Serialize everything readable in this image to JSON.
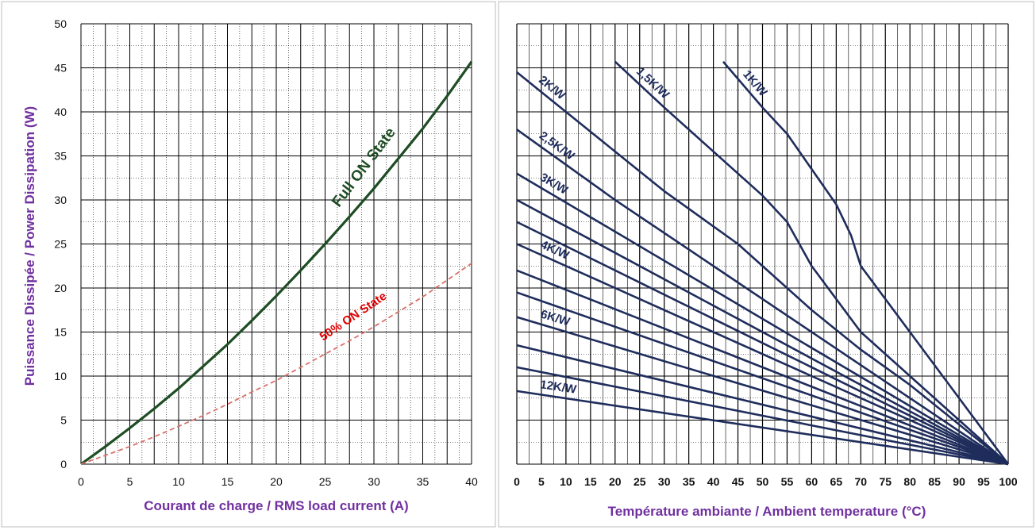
{
  "chart_data": [
    {
      "type": "line",
      "title": "",
      "xlabel": "Courant de charge / RMS load current (A)",
      "ylabel": "Puissance Dissipée / Power Dissipation (W)",
      "xlim": [
        0,
        40
      ],
      "ylim": [
        0,
        50
      ],
      "xticks": [
        "0",
        "5",
        "10",
        "15",
        "20",
        "25",
        "30",
        "35",
        "40"
      ],
      "yticks": [
        "0",
        "5",
        "10",
        "15",
        "20",
        "25",
        "30",
        "35",
        "40",
        "45",
        "50"
      ],
      "grid": true,
      "colors": {
        "full": "#1e4d24",
        "half": "#d9706a",
        "axis_label": "#7030a0"
      },
      "series": [
        {
          "name": "Full ON State",
          "style": "solid",
          "x": [
            0,
            2.5,
            5,
            7.5,
            10,
            12.5,
            15,
            17.5,
            20,
            22.5,
            25,
            27.5,
            30,
            32.5,
            35,
            37.5,
            40
          ],
          "y": [
            0,
            2.0,
            4.1,
            6.3,
            8.6,
            11.1,
            13.6,
            16.3,
            19.1,
            22.0,
            25.0,
            28.1,
            31.3,
            34.7,
            38.1,
            41.8,
            45.7
          ]
        },
        {
          "name": "50% ON State",
          "style": "dashed",
          "x": [
            0,
            2.5,
            5,
            7.5,
            10,
            12.5,
            15,
            17.5,
            20,
            22.5,
            25,
            27.5,
            30,
            32.5,
            35,
            37.5,
            40
          ],
          "y": [
            0,
            1.0,
            2.0,
            3.1,
            4.3,
            5.5,
            6.8,
            8.2,
            9.5,
            11.0,
            12.5,
            14.0,
            15.6,
            17.3,
            19.0,
            20.9,
            22.8
          ]
        }
      ]
    },
    {
      "type": "line",
      "title": "",
      "xlabel": "Température ambiante / Ambient temperature (°C)",
      "ylabel": "",
      "xlim": [
        0,
        100
      ],
      "ylim": [
        0,
        50
      ],
      "xticks": [
        "0",
        "5",
        "10",
        "15",
        "20",
        "25",
        "30",
        "35",
        "40",
        "45",
        "50",
        "55",
        "60",
        "65",
        "70",
        "75",
        "80",
        "85",
        "90",
        "95",
        "100"
      ],
      "grid": true,
      "colors": {
        "lines": "#1f2d5c",
        "axis_label": "#7030a0"
      },
      "series": [
        {
          "name": "1K/W",
          "x": [
            42,
            50,
            55,
            60,
            65,
            68,
            70,
            80,
            90,
            100
          ],
          "y": [
            45.7,
            40.5,
            37.5,
            33.5,
            29.5,
            26,
            22.5,
            15,
            7.5,
            0
          ]
        },
        {
          "name": "1,5K/W",
          "x": [
            20,
            30,
            40,
            50,
            55,
            60,
            70,
            80,
            90,
            100
          ],
          "y": [
            45.7,
            40.5,
            35.5,
            30.5,
            27.5,
            22.5,
            15,
            10,
            5,
            0
          ]
        },
        {
          "name": "2K/W",
          "x": [
            0,
            10,
            20,
            30,
            40,
            45,
            50,
            60,
            70,
            80,
            90,
            100
          ],
          "y": [
            44.5,
            40,
            35.5,
            31,
            27,
            25,
            22.5,
            17.5,
            13,
            9,
            4.5,
            0
          ]
        },
        {
          "name": "2,5K/W",
          "x": [
            0,
            20,
            40,
            100
          ],
          "y": [
            38,
            30,
            22.5,
            0
          ]
        },
        {
          "name": "3K/W",
          "x": [
            0,
            100
          ],
          "y": [
            33,
            0
          ]
        },
        {
          "name": "",
          "x": [
            0,
            100
          ],
          "y": [
            30,
            0
          ]
        },
        {
          "name": "",
          "x": [
            0,
            100
          ],
          "y": [
            27.5,
            0
          ]
        },
        {
          "name": "4K/W",
          "x": [
            0,
            100
          ],
          "y": [
            25,
            0
          ]
        },
        {
          "name": "",
          "x": [
            0,
            100
          ],
          "y": [
            22,
            0
          ]
        },
        {
          "name": "",
          "x": [
            0,
            100
          ],
          "y": [
            19.5,
            0
          ]
        },
        {
          "name": "6K/W",
          "x": [
            0,
            100
          ],
          "y": [
            16.7,
            0
          ]
        },
        {
          "name": "",
          "x": [
            0,
            100
          ],
          "y": [
            13.5,
            0
          ]
        },
        {
          "name": "",
          "x": [
            0,
            100
          ],
          "y": [
            11,
            0
          ]
        },
        {
          "name": "12K/W",
          "x": [
            0,
            100
          ],
          "y": [
            8.3,
            0
          ]
        }
      ]
    }
  ],
  "annotations": {
    "full_on": "Full ON State",
    "half_on": "50% ON State"
  }
}
